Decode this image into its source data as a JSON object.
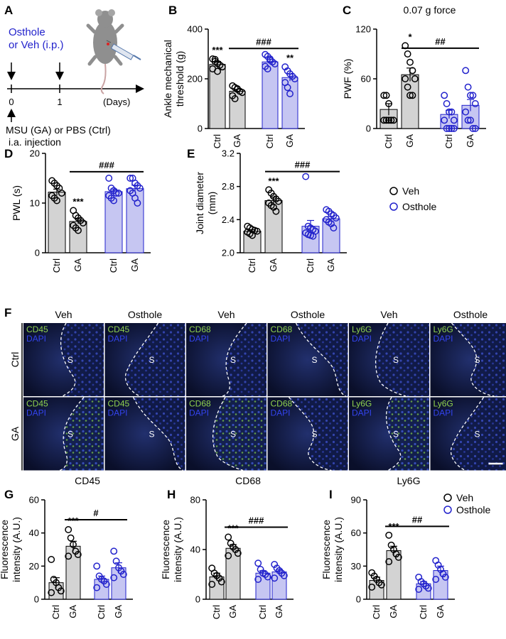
{
  "colors": {
    "veh_bar": "#d3d3d3",
    "osthole_bar": "#c6c6f2",
    "veh_dot": "#000000",
    "osthole_dot": "#2222cc",
    "blue_text": "#2222cc",
    "green_text": "#8fd14f"
  },
  "panel_labels": [
    "A",
    "B",
    "C",
    "D",
    "E",
    "F",
    "G",
    "H",
    "I"
  ],
  "schematic": {
    "treatment": "Osthole\nor Veh (i.p.)",
    "day0": "0",
    "day1": "1",
    "days": "(Days)",
    "injection": "MSU (GA) or PBS (Ctrl)\ni.a. injection",
    "mouse_icon": "mouse-icon",
    "syringe_icon": "syringe-icon"
  },
  "legend_top": {
    "veh": "Veh",
    "osthole": "Osthole"
  },
  "legend_bottom": {
    "veh": "Veh",
    "osthole": "Osthole"
  },
  "chart_data": [
    {
      "panel": "B",
      "type": "bar",
      "categories": [
        "Ctrl",
        "GA",
        "Ctrl",
        "GA"
      ],
      "title": "",
      "ylabel": "Ankle mechanical\nthreshold (g)",
      "ylim": [
        0,
        400
      ],
      "yticks": [
        0,
        200,
        400
      ],
      "groups": [
        "Veh",
        "Veh",
        "Osthole",
        "Osthole"
      ],
      "values": [
        258,
        150,
        268,
        205
      ],
      "errors": [
        12,
        8,
        10,
        14
      ],
      "points": [
        [
          280,
          270,
          262,
          255,
          248,
          240,
          278,
          230
        ],
        [
          172,
          165,
          158,
          150,
          145,
          132,
          120,
          160
        ],
        [
          298,
          290,
          280,
          268,
          260,
          250,
          240,
          275
        ],
        [
          248,
          232,
          220,
          210,
          200,
          185,
          165,
          140
        ]
      ],
      "annotations": [
        "***",
        "",
        "",
        "**"
      ],
      "comparison": {
        "from": 1,
        "to": 3,
        "label": "###",
        "y": 322
      }
    },
    {
      "panel": "C",
      "type": "bar",
      "categories": [
        "Ctrl",
        "GA",
        "Ctrl",
        "GA"
      ],
      "title": "0.07 g force",
      "ylabel": "PWF (%)",
      "ylim": [
        0,
        120
      ],
      "yticks": [
        0,
        60,
        120
      ],
      "groups": [
        "Veh",
        "Veh",
        "Osthole",
        "Osthole"
      ],
      "values": [
        23,
        65,
        17,
        28
      ],
      "errors": [
        7,
        8,
        5,
        7
      ],
      "points": [
        [
          40,
          40,
          30,
          10,
          10,
          10,
          10,
          10
        ],
        [
          100,
          90,
          80,
          70,
          60,
          60,
          50,
          40,
          40
        ],
        [
          40,
          30,
          20,
          20,
          10,
          10,
          0,
          0,
          0,
          0
        ],
        [
          70,
          50,
          40,
          40,
          30,
          20,
          10,
          10,
          0,
          0
        ]
      ],
      "annotations": [
        "",
        "*",
        "",
        ""
      ],
      "comparison": {
        "from": 1,
        "to": 3,
        "label": "##",
        "y": 97
      }
    },
    {
      "panel": "D",
      "type": "bar",
      "categories": [
        "Ctrl",
        "GA",
        "Ctrl",
        "GA"
      ],
      "title": "",
      "ylabel": "PWL (s)",
      "ylim": [
        0,
        20
      ],
      "yticks": [
        0,
        10,
        20
      ],
      "groups": [
        "Veh",
        "Veh",
        "Osthole",
        "Osthole"
      ],
      "values": [
        12.2,
        6.3,
        12.3,
        12.9
      ],
      "errors": [
        0.6,
        0.5,
        0.5,
        0.7
      ],
      "points": [
        [
          14.5,
          14,
          13.5,
          13,
          12,
          11.5,
          11,
          10.5
        ],
        [
          8.5,
          7.5,
          7,
          6.5,
          6,
          5.5,
          5,
          4.5
        ],
        [
          15,
          13,
          12.5,
          12,
          12,
          11.5,
          11,
          10.5
        ],
        [
          15,
          15,
          14,
          13.5,
          13,
          12.5,
          12,
          11,
          10
        ]
      ],
      "annotations": [
        "",
        "***",
        "",
        ""
      ],
      "comparison": {
        "from": 1,
        "to": 3,
        "label": "###",
        "y": 16.3
      }
    },
    {
      "panel": "E",
      "type": "bar",
      "categories": [
        "Ctrl",
        "GA",
        "Ctrl",
        "GA"
      ],
      "title": "",
      "ylabel": "Joint diameter\n(mm)",
      "ylim": [
        2.0,
        3.2
      ],
      "yticks": [
        2.0,
        2.4,
        2.8,
        3.2
      ],
      "groups": [
        "Veh",
        "Veh",
        "Osthole",
        "Osthole"
      ],
      "values": [
        2.26,
        2.63,
        2.32,
        2.41
      ],
      "errors": [
        0.02,
        0.04,
        0.07,
        0.03
      ],
      "points": [
        [
          2.32,
          2.3,
          2.28,
          2.27,
          2.26,
          2.25,
          2.23,
          2.21
        ],
        [
          2.76,
          2.72,
          2.68,
          2.65,
          2.62,
          2.6,
          2.57,
          2.55,
          2.5
        ],
        [
          2.92,
          2.32,
          2.3,
          2.28,
          2.26,
          2.24,
          2.22,
          2.21,
          2.2
        ],
        [
          2.52,
          2.5,
          2.47,
          2.45,
          2.42,
          2.4,
          2.37,
          2.35,
          2.3
        ]
      ],
      "annotations": [
        "",
        "***",
        "",
        ""
      ],
      "comparison": {
        "from": 1,
        "to": 3,
        "label": "###",
        "y": 2.98
      }
    },
    {
      "panel": "G",
      "type": "bar",
      "categories": [
        "Ctrl",
        "GA",
        "Ctrl",
        "GA"
      ],
      "title": "CD45",
      "ylabel": "Fluorescence\nintensity (A.U.)",
      "ylim": [
        0,
        60
      ],
      "yticks": [
        0,
        20,
        40,
        60
      ],
      "groups": [
        "Veh",
        "Veh",
        "Osthole",
        "Osthole"
      ],
      "values": [
        10,
        32,
        12,
        19
      ],
      "errors": [
        3,
        3,
        2,
        3
      ],
      "points": [
        [
          24,
          12,
          10,
          7,
          5,
          4
        ],
        [
          42,
          37,
          33,
          29,
          27,
          26
        ],
        [
          20,
          14,
          12,
          11,
          9,
          7
        ],
        [
          29,
          23,
          19,
          17,
          15,
          13
        ]
      ],
      "annotations": [
        "",
        "***",
        "",
        ""
      ],
      "comparison": {
        "from": 1,
        "to": 3,
        "label": "#",
        "y": 48
      }
    },
    {
      "panel": "H",
      "type": "bar",
      "categories": [
        "Ctrl",
        "GA",
        "Ctrl",
        "GA"
      ],
      "title": "CD68",
      "ylabel": "Fluorescence\nintensity (A.U.)",
      "ylim": [
        0,
        80
      ],
      "yticks": [
        0,
        40,
        80
      ],
      "groups": [
        "Veh",
        "Veh",
        "Osthole",
        "Osthole"
      ],
      "values": [
        18,
        41,
        21,
        22
      ],
      "errors": [
        3,
        3,
        2,
        2
      ],
      "points": [
        [
          25,
          21,
          19,
          17,
          14,
          12
        ],
        [
          50,
          45,
          42,
          40,
          37,
          35
        ],
        [
          29,
          24,
          21,
          20,
          18,
          16
        ],
        [
          28,
          25,
          23,
          21,
          19,
          17
        ]
      ],
      "annotations": [
        "",
        "***",
        "",
        ""
      ],
      "comparison": {
        "from": 1,
        "to": 3,
        "label": "###",
        "y": 58
      }
    },
    {
      "panel": "I",
      "type": "bar",
      "categories": [
        "Ctrl",
        "GA",
        "Ctrl",
        "GA"
      ],
      "title": "Ly6G",
      "ylabel": "Fluorescence\nintensity (A.U.)",
      "ylim": [
        0,
        90
      ],
      "yticks": [
        0,
        30,
        60,
        90
      ],
      "groups": [
        "Veh",
        "Veh",
        "Osthole",
        "Osthole"
      ],
      "values": [
        17,
        44,
        14,
        26
      ],
      "errors": [
        3,
        4,
        2,
        4
      ],
      "points": [
        [
          24,
          21,
          18,
          15,
          13,
          11
        ],
        [
          58,
          49,
          45,
          41,
          38,
          34
        ],
        [
          20,
          16,
          14,
          12,
          10,
          9
        ],
        [
          35,
          31,
          27,
          23,
          20,
          18
        ]
      ],
      "annotations": [
        "",
        "***",
        "",
        ""
      ],
      "comparison": {
        "from": 1,
        "to": 3,
        "label": "##",
        "y": 66
      }
    }
  ],
  "micrographs": {
    "columns": [
      "Veh",
      "Osthole",
      "Veh",
      "Osthole",
      "Veh",
      "Osthole"
    ],
    "rows": [
      "Ctrl",
      "GA"
    ],
    "markers": [
      "CD45",
      "CD45",
      "CD68",
      "CD68",
      "Ly6G",
      "Ly6G"
    ],
    "dapi": "DAPI",
    "synovium": "S",
    "scale_bar": "scale-bar"
  }
}
